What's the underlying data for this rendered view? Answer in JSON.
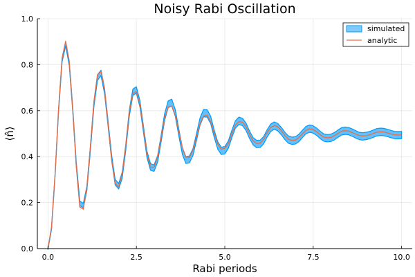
{
  "chart_data": {
    "type": "line",
    "title": "Noisy Rabi Oscillation",
    "xlabel": "Rabi periods",
    "ylabel": "⟨n̂⟩",
    "xlim": [
      -0.3,
      10.3
    ],
    "ylim": [
      0,
      1
    ],
    "xticks": [
      0,
      2.5,
      5,
      7.5,
      10
    ],
    "xtick_labels": [
      "0.0",
      "2.5",
      "5.0",
      "7.5",
      "10.0"
    ],
    "yticks": [
      0,
      0.2,
      0.4,
      0.6,
      0.8,
      1.0
    ],
    "ytick_labels": [
      "0.0",
      "0.2",
      "0.4",
      "0.6",
      "0.8",
      "1.0"
    ],
    "grid": true,
    "legend_position": "top-right",
    "series": [
      {
        "name": "simulated",
        "style": "band",
        "color": "#009AFA",
        "x": [
          0.0,
          0.1,
          0.2,
          0.3,
          0.4,
          0.5,
          0.6,
          0.7,
          0.8,
          0.9,
          1.0,
          1.1,
          1.2,
          1.3,
          1.4,
          1.5,
          1.6,
          1.7,
          1.8,
          1.9,
          2.0,
          2.1,
          2.2,
          2.3,
          2.4,
          2.5,
          2.6,
          2.7,
          2.8,
          2.9,
          3.0,
          3.1,
          3.2,
          3.3,
          3.4,
          3.5,
          3.6,
          3.7,
          3.8,
          3.9,
          4.0,
          4.1,
          4.2,
          4.3,
          4.4,
          4.5,
          4.6,
          4.7,
          4.8,
          4.9,
          5.0,
          5.1,
          5.2,
          5.3,
          5.4,
          5.5,
          5.6,
          5.7,
          5.8,
          5.9,
          6.0,
          6.1,
          6.2,
          6.3,
          6.4,
          6.5,
          6.6,
          6.7,
          6.8,
          6.9,
          7.0,
          7.1,
          7.2,
          7.3,
          7.4,
          7.5,
          7.6,
          7.7,
          7.8,
          7.9,
          8.0,
          8.1,
          8.2,
          8.3,
          8.4,
          8.5,
          8.6,
          8.7,
          8.8,
          8.9,
          9.0,
          9.1,
          9.2,
          9.3,
          9.4,
          9.5,
          9.6,
          9.7,
          9.8,
          9.9,
          10.0
        ],
        "center": [
          0.0,
          0.087,
          0.316,
          0.601,
          0.821,
          0.891,
          0.808,
          0.608,
          0.368,
          0.197,
          0.187,
          0.262,
          0.436,
          0.629,
          0.744,
          0.764,
          0.686,
          0.543,
          0.396,
          0.289,
          0.271,
          0.32,
          0.441,
          0.589,
          0.68,
          0.69,
          0.63,
          0.519,
          0.41,
          0.355,
          0.35,
          0.39,
          0.479,
          0.573,
          0.628,
          0.635,
          0.59,
          0.505,
          0.425,
          0.385,
          0.388,
          0.42,
          0.485,
          0.553,
          0.589,
          0.588,
          0.56,
          0.5,
          0.449,
          0.425,
          0.428,
          0.452,
          0.499,
          0.54,
          0.556,
          0.551,
          0.53,
          0.495,
          0.467,
          0.455,
          0.456,
          0.472,
          0.502,
          0.526,
          0.535,
          0.528,
          0.511,
          0.49,
          0.474,
          0.469,
          0.471,
          0.482,
          0.5,
          0.516,
          0.522,
          0.518,
          0.508,
          0.494,
          0.483,
          0.48,
          0.482,
          0.489,
          0.5,
          0.51,
          0.513,
          0.511,
          0.505,
          0.497,
          0.49,
          0.488,
          0.49,
          0.494,
          0.5,
          0.506,
          0.508,
          0.507,
          0.503,
          0.498,
          0.494,
          0.493,
          0.494
        ],
        "half_width": [
          0.004,
          0.005,
          0.006,
          0.008,
          0.009,
          0.01,
          0.01,
          0.01,
          0.01,
          0.01,
          0.01,
          0.01,
          0.011,
          0.011,
          0.012,
          0.012,
          0.012,
          0.012,
          0.012,
          0.012,
          0.012,
          0.013,
          0.013,
          0.014,
          0.014,
          0.014,
          0.014,
          0.014,
          0.014,
          0.014,
          0.014,
          0.014,
          0.014,
          0.015,
          0.015,
          0.015,
          0.015,
          0.015,
          0.015,
          0.015,
          0.015,
          0.015,
          0.015,
          0.016,
          0.016,
          0.016,
          0.016,
          0.016,
          0.016,
          0.016,
          0.016,
          0.016,
          0.016,
          0.016,
          0.016,
          0.016,
          0.016,
          0.016,
          0.016,
          0.016,
          0.016,
          0.016,
          0.016,
          0.016,
          0.016,
          0.016,
          0.016,
          0.016,
          0.016,
          0.016,
          0.016,
          0.016,
          0.016,
          0.016,
          0.016,
          0.016,
          0.016,
          0.016,
          0.016,
          0.016,
          0.016,
          0.016,
          0.016,
          0.016,
          0.016,
          0.016,
          0.016,
          0.016,
          0.016,
          0.016,
          0.016,
          0.016,
          0.016,
          0.016,
          0.016,
          0.016,
          0.016,
          0.016,
          0.016,
          0.016,
          0.016
        ]
      },
      {
        "name": "analytic",
        "style": "line",
        "color": "#E26F46",
        "x": [
          0.0,
          0.1,
          0.2,
          0.3,
          0.4,
          0.5,
          0.6,
          0.7,
          0.8,
          0.9,
          1.0,
          1.1,
          1.2,
          1.3,
          1.4,
          1.5,
          1.6,
          1.7,
          1.8,
          1.9,
          2.0,
          2.1,
          2.2,
          2.3,
          2.4,
          2.5,
          2.6,
          2.7,
          2.8,
          2.9,
          3.0,
          3.1,
          3.2,
          3.3,
          3.4,
          3.5,
          3.6,
          3.7,
          3.8,
          3.9,
          4.0,
          4.1,
          4.2,
          4.3,
          4.4,
          4.5,
          4.6,
          4.7,
          4.8,
          4.9,
          5.0,
          5.1,
          5.2,
          5.3,
          5.4,
          5.5,
          5.6,
          5.7,
          5.8,
          5.9,
          6.0,
          6.1,
          6.2,
          6.3,
          6.4,
          6.5,
          6.6,
          6.7,
          6.8,
          6.9,
          7.0,
          7.1,
          7.2,
          7.3,
          7.4,
          7.5,
          7.6,
          7.7,
          7.8,
          7.9,
          8.0,
          8.1,
          8.2,
          8.3,
          8.4,
          8.5,
          8.6,
          8.7,
          8.8,
          8.9,
          9.0,
          9.1,
          9.2,
          9.3,
          9.4,
          9.5,
          9.6,
          9.7,
          9.8,
          9.9,
          10.0
        ],
        "y": [
          0.0,
          0.092,
          0.323,
          0.608,
          0.828,
          0.902,
          0.815,
          0.603,
          0.357,
          0.181,
          0.171,
          0.268,
          0.446,
          0.641,
          0.756,
          0.771,
          0.694,
          0.541,
          0.386,
          0.283,
          0.268,
          0.328,
          0.448,
          0.594,
          0.675,
          0.683,
          0.627,
          0.519,
          0.412,
          0.354,
          0.354,
          0.398,
          0.484,
          0.568,
          0.616,
          0.62,
          0.58,
          0.51,
          0.438,
          0.398,
          0.396,
          0.428,
          0.484,
          0.543,
          0.577,
          0.58,
          0.552,
          0.502,
          0.455,
          0.432,
          0.437,
          0.456,
          0.5,
          0.537,
          0.552,
          0.55,
          0.53,
          0.497,
          0.469,
          0.457,
          0.459,
          0.476,
          0.505,
          0.527,
          0.535,
          0.53,
          0.513,
          0.492,
          0.476,
          0.47,
          0.472,
          0.484,
          0.5,
          0.515,
          0.521,
          0.518,
          0.508,
          0.495,
          0.485,
          0.482,
          0.484,
          0.491,
          0.501,
          0.51,
          0.513,
          0.511,
          0.505,
          0.498,
          0.492,
          0.49,
          0.491,
          0.495,
          0.501,
          0.506,
          0.508,
          0.507,
          0.503,
          0.499,
          0.495,
          0.494,
          0.495
        ]
      }
    ]
  }
}
